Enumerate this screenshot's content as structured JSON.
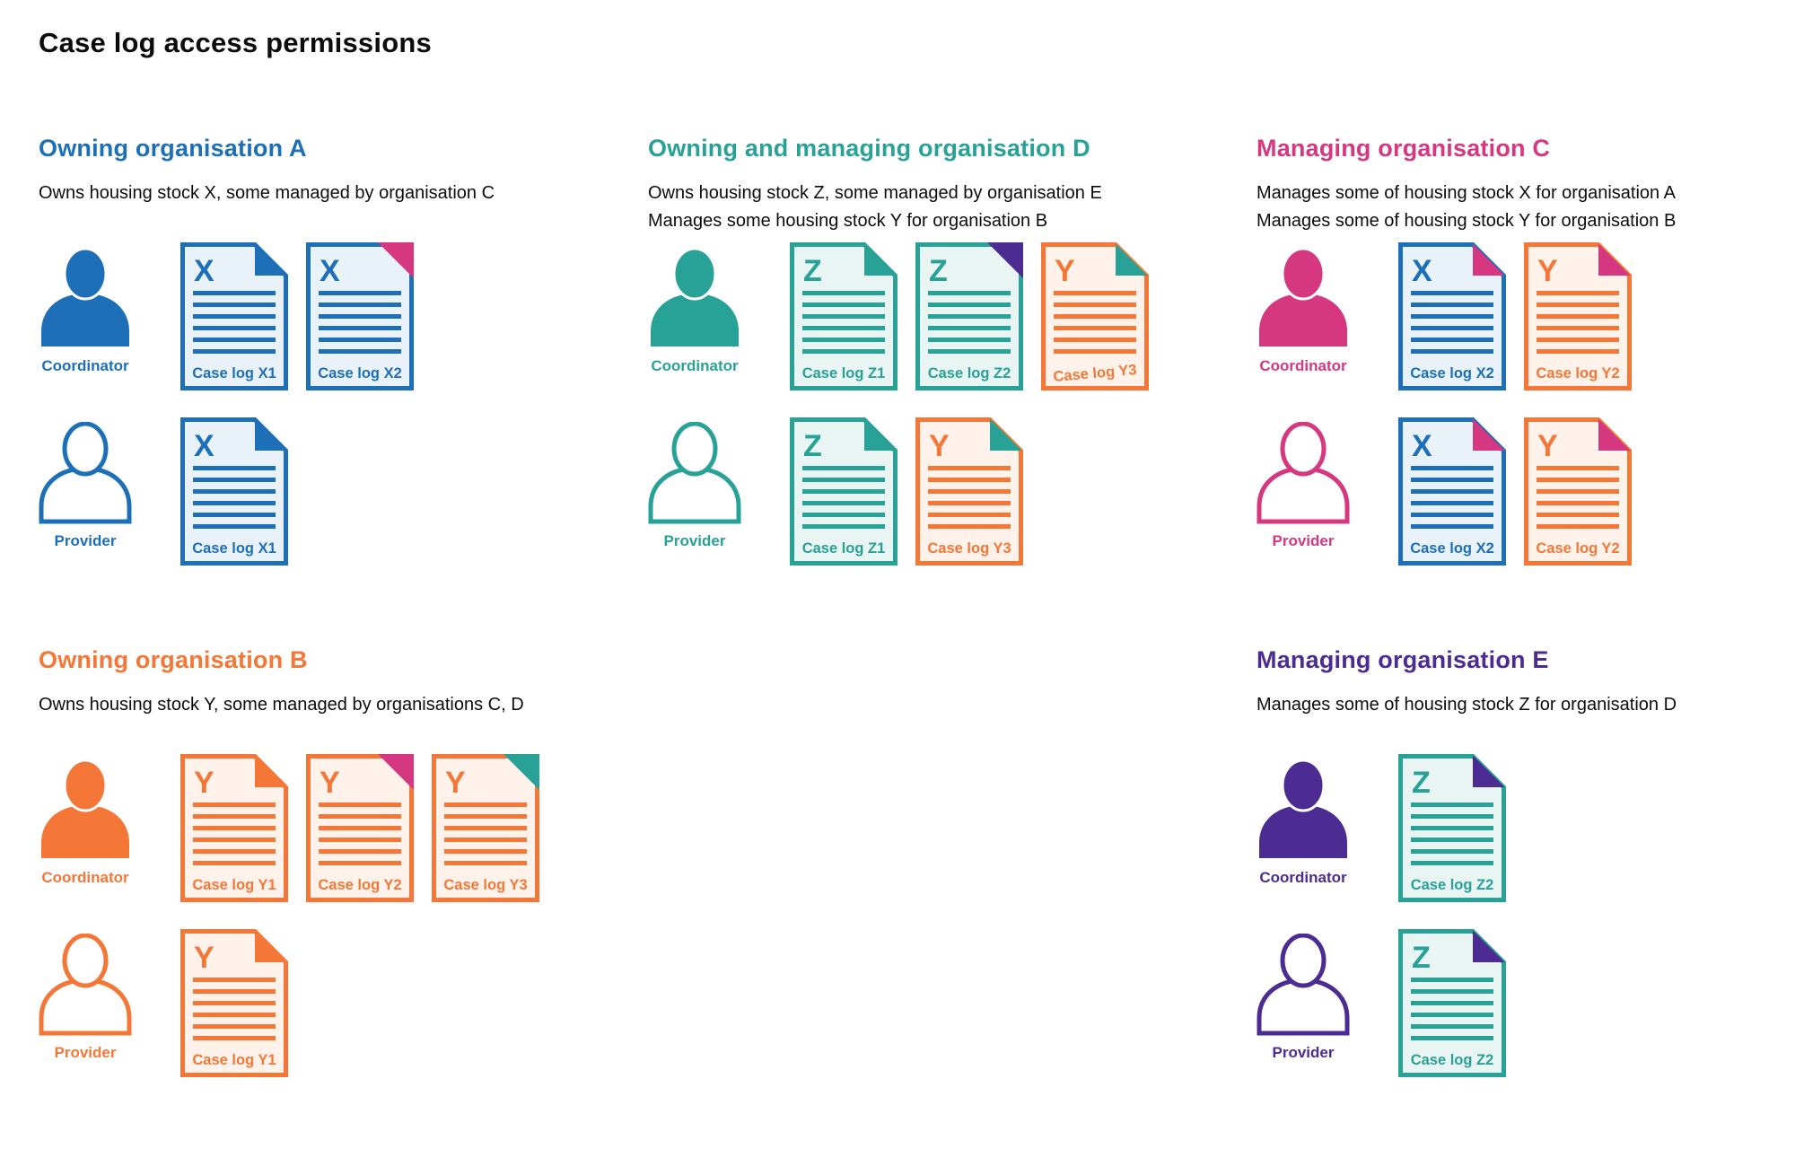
{
  "title": "Case log access permissions",
  "colors": {
    "blue": "#1d70b8",
    "teal": "#28a197",
    "pink": "#d53880",
    "orange": "#f47738",
    "purple": "#4c2c92",
    "text": "#0b0c0c"
  },
  "doc_tints": {
    "blue": "#e9f1f9",
    "teal": "#e9f5f3",
    "orange": "#fef2ea"
  },
  "sections": [
    {
      "id": "org-a",
      "heading": "Owning organisation A",
      "color": "blue",
      "description": [
        "Owns housing stock X, some managed by organisation C"
      ],
      "col": 0,
      "band": 0,
      "rows": [
        {
          "role": "Coordinator",
          "person": "filled",
          "docs": [
            {
              "letter": "X",
              "label": "Case log X1",
              "doc_color": "blue",
              "fold_color": "blue",
              "fold_style": "flap"
            },
            {
              "letter": "X",
              "label": "Case log X2",
              "doc_color": "blue",
              "fold_color": "pink",
              "fold_style": "solid"
            }
          ]
        },
        {
          "role": "Provider",
          "person": "outline",
          "docs": [
            {
              "letter": "X",
              "label": "Case log X1",
              "doc_color": "blue",
              "fold_color": "blue",
              "fold_style": "flap"
            }
          ]
        }
      ]
    },
    {
      "id": "org-d",
      "heading": "Owning and managing organisation D",
      "color": "teal",
      "description": [
        "Owns housing stock Z, some managed by organisation E",
        "Manages some housing stock Y for organisation B"
      ],
      "col": 1,
      "band": 0,
      "rows": [
        {
          "role": "Coordinator",
          "person": "filled",
          "docs": [
            {
              "letter": "Z",
              "label": "Case log Z1",
              "doc_color": "teal",
              "fold_color": "teal",
              "fold_style": "flap"
            },
            {
              "letter": "Z",
              "label": "Case log Z2",
              "doc_color": "teal",
              "fold_color": "purple",
              "fold_style": "solid"
            },
            {
              "letter": "Y",
              "label": "Case log Y3",
              "doc_color": "orange",
              "fold_color": "teal",
              "fold_style": "flap",
              "label_tilt": -5
            }
          ]
        },
        {
          "role": "Provider",
          "person": "outline",
          "docs": [
            {
              "letter": "Z",
              "label": "Case log Z1",
              "doc_color": "teal",
              "fold_color": "teal",
              "fold_style": "flap"
            },
            {
              "letter": "Y",
              "label": "Case log Y3",
              "doc_color": "orange",
              "fold_color": "teal",
              "fold_style": "flap"
            }
          ]
        }
      ]
    },
    {
      "id": "org-c",
      "heading": "Managing organisation C",
      "color": "pink",
      "description": [
        "Manages some of housing stock X for organisation A",
        "Manages some of housing stock Y for organisation B"
      ],
      "col": 2,
      "band": 0,
      "rows": [
        {
          "role": "Coordinator",
          "person": "filled",
          "docs": [
            {
              "letter": "X",
              "label": "Case log X2",
              "doc_color": "blue",
              "fold_color": "pink",
              "fold_style": "flap"
            },
            {
              "letter": "Y",
              "label": "Case log Y2",
              "doc_color": "orange",
              "fold_color": "pink",
              "fold_style": "flap"
            }
          ]
        },
        {
          "role": "Provider",
          "person": "outline",
          "docs": [
            {
              "letter": "X",
              "label": "Case log X2",
              "doc_color": "blue",
              "fold_color": "pink",
              "fold_style": "flap"
            },
            {
              "letter": "Y",
              "label": "Case log Y2",
              "doc_color": "orange",
              "fold_color": "pink",
              "fold_style": "flap"
            }
          ]
        }
      ]
    },
    {
      "id": "org-b",
      "heading": "Owning organisation B",
      "color": "orange",
      "description": [
        "Owns housing stock Y, some managed by organisations C, D"
      ],
      "col": 0,
      "band": 1,
      "rows": [
        {
          "role": "Coordinator",
          "person": "filled",
          "docs": [
            {
              "letter": "Y",
              "label": "Case log Y1",
              "doc_color": "orange",
              "fold_color": "orange",
              "fold_style": "flap"
            },
            {
              "letter": "Y",
              "label": "Case log Y2",
              "doc_color": "orange",
              "fold_color": "pink",
              "fold_style": "solid"
            },
            {
              "letter": "Y",
              "label": "Case log Y3",
              "doc_color": "orange",
              "fold_color": "teal",
              "fold_style": "solid"
            }
          ]
        },
        {
          "role": "Provider",
          "person": "outline",
          "docs": [
            {
              "letter": "Y",
              "label": "Case log Y1",
              "doc_color": "orange",
              "fold_color": "orange",
              "fold_style": "flap"
            }
          ]
        }
      ]
    },
    {
      "id": "org-e",
      "heading": "Managing organisation E",
      "color": "purple",
      "description": [
        "Manages some of housing stock Z for organisation D"
      ],
      "col": 2,
      "band": 1,
      "rows": [
        {
          "role": "Coordinator",
          "person": "filled",
          "docs": [
            {
              "letter": "Z",
              "label": "Case log Z2",
              "doc_color": "teal",
              "fold_color": "purple",
              "fold_style": "flap"
            }
          ]
        },
        {
          "role": "Provider",
          "person": "outline",
          "docs": [
            {
              "letter": "Z",
              "label": "Case log Z2",
              "doc_color": "teal",
              "fold_color": "purple",
              "fold_style": "flap"
            }
          ]
        }
      ]
    }
  ]
}
